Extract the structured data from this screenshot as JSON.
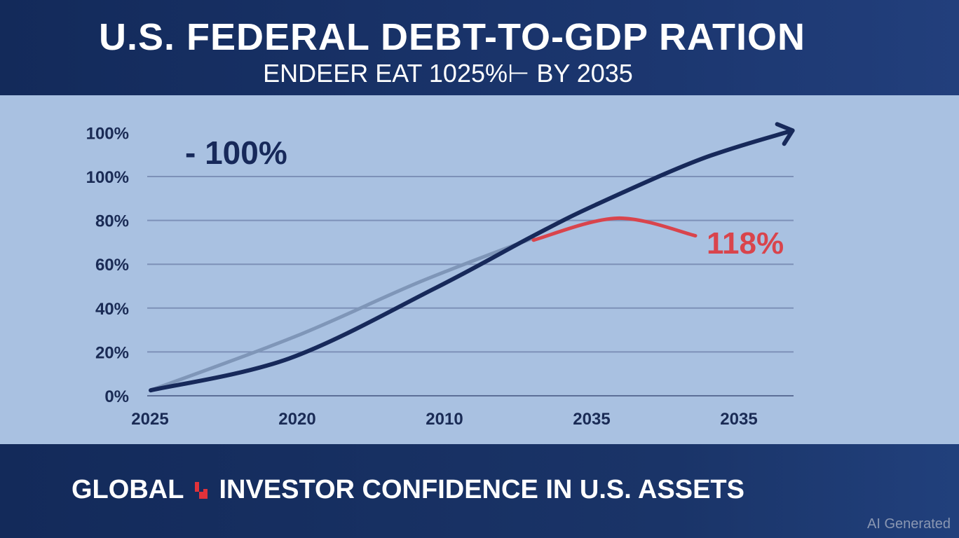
{
  "header": {
    "title": "U.S. FEDERAL DEBT-TO-GDP RATION",
    "subtitle": "ENDEER EAT 1025%⊢ BY 2035"
  },
  "footer": {
    "text": "GLOBAL",
    "text2": "INVESTOR CONFIDENCE IN U.S. ASSETS",
    "icon": "red-step-arrow-icon",
    "watermark": "AI Generated"
  },
  "colors": {
    "header_bg": "#132a5a",
    "plot_bg": "#a9c1e1",
    "dark_line": "#17295a",
    "grey_line": "#7f96b8",
    "red_line": "#d9444c",
    "grid": "#7d91b8"
  },
  "chart_data": {
    "type": "line",
    "title": "U.S. FEDERAL DEBT-TO-GDP RATION",
    "x_tick_labels": [
      "2025",
      "2020",
      "2010",
      "2035",
      "2035"
    ],
    "y_tick_labels": [
      "0%",
      "20%",
      "40%",
      "60%",
      "80%",
      "100%",
      "100%"
    ],
    "ylim": [
      0,
      120
    ],
    "xlim": [
      0,
      4
    ],
    "grid": true,
    "series": [
      {
        "name": "grey",
        "color": "#7f96b8",
        "x": [
          0,
          0.98,
          1.83,
          2.6
        ],
        "y": [
          2.5,
          27,
          52,
          72
        ]
      },
      {
        "name": "red",
        "color": "#d9444c",
        "x": [
          2.6,
          3.17,
          3.7
        ],
        "y": [
          71,
          81,
          73
        ]
      },
      {
        "name": "dark",
        "color": "#17295a",
        "x": [
          0,
          0.94,
          1.93,
          2.6,
          3.02,
          3.74,
          4.36
        ],
        "y": [
          2.5,
          17,
          49,
          73,
          87,
          108,
          121
        ]
      }
    ],
    "annotations": [
      {
        "text": "- 100%",
        "color": "#17295a"
      },
      {
        "text": "118%",
        "color": "#d9444c"
      }
    ]
  }
}
